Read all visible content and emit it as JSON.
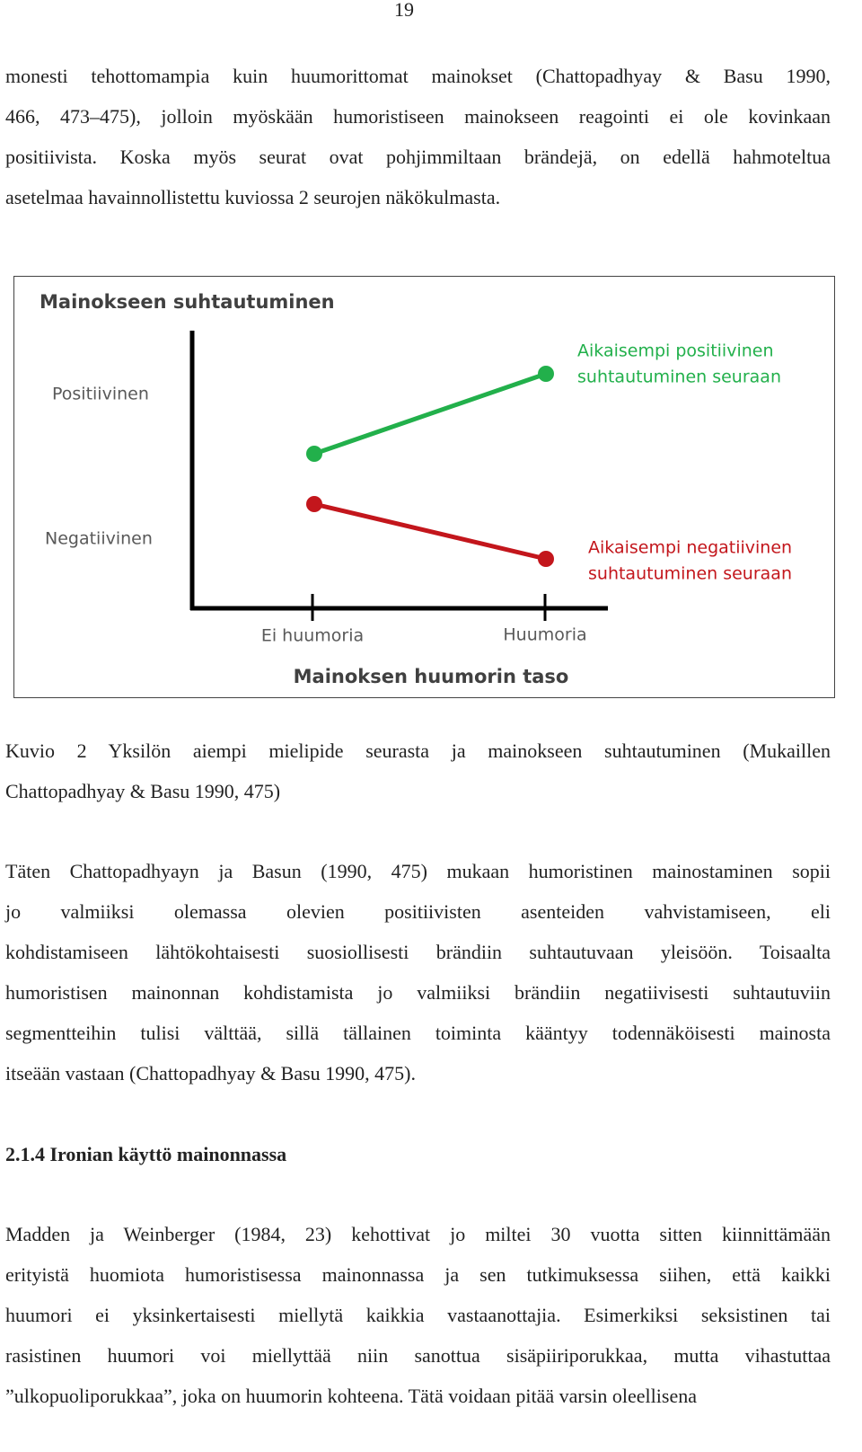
{
  "page_number": "19",
  "paragraphs": [
    {
      "lines": [
        "monesti tehottomampia kuin huumorittomat mainokset (Chattopadhyay & Basu 1990,",
        "466, 473–475), jolloin myöskään humoristiseen mainokseen reagointi ei ole kovinkaan",
        "positiivista. Koska myös seurat ovat pohjimmiltaan brändejä, on edellä hahmoteltua",
        "asetelmaa havainnollistettu kuviossa 2 seurojen näkökulmasta."
      ]
    },
    {
      "lines": [
        "Täten Chattopadhyayn ja Basun (1990, 475) mukaan humoristinen mainostaminen sopii",
        "jo valmiiksi olemassa olevien positiivisten asenteiden vahvistamiseen, eli",
        "kohdistamiseen lähtökohtaisesti suosiollisesti brändiin suhtautuvaan yleisöön. Toisaalta",
        "humoristisen mainonnan kohdistamista jo valmiiksi brändiin negatiivisesti suhtautuviin",
        "segmentteihin tulisi välttää, sillä tällainen toiminta kääntyy todennäköisesti mainosta",
        "itseään vastaan (Chattopadhyay & Basu 1990, 475)."
      ]
    },
    {
      "lines": [
        "Madden ja Weinberger (1984, 23) kehottivat jo miltei 30 vuotta sitten kiinnittämään",
        "erityistä huomiota humoristisessa mainonnassa ja sen tutkimuksessa siihen, että kaikki",
        "huumori ei yksinkertaisesti miellytä kaikkia vastaanottajia. Esimerkiksi seksistinen tai",
        "rasistinen huumori voi miellyttää niin sanottua sisäpiiriporukkaa, mutta vihastuttaa",
        "”ulkopuoliporukkaa”, joka on huumorin kohteena. Tätä voidaan pitää varsin oleellisena"
      ]
    }
  ],
  "figure": {
    "title": "Mainokseen suhtautuminen",
    "y_labels": [
      "Positiivinen",
      "Negatiivinen"
    ],
    "x_labels": [
      "Ei huumoria",
      "Huumoria"
    ],
    "x_title": "Mainoksen huumorin taso",
    "series_labels": [
      {
        "lines": [
          "Aikaisempi positiivinen",
          "suhtautuminen seuraan"
        ],
        "color": "#22b04b"
      },
      {
        "lines": [
          "Aikaisempi negatiivinen",
          "suhtautuminen seuraan"
        ],
        "color": "#c3161c"
      }
    ]
  },
  "caption": {
    "lines": [
      "Kuvio 2 Yksilön aiempi mielipide seurasta ja mainokseen suhtautuminen (Mukaillen",
      "Chattopadhyay & Basu 1990, 475)"
    ]
  },
  "heading": "2.1.4 Ironian käyttö mainonnassa"
}
